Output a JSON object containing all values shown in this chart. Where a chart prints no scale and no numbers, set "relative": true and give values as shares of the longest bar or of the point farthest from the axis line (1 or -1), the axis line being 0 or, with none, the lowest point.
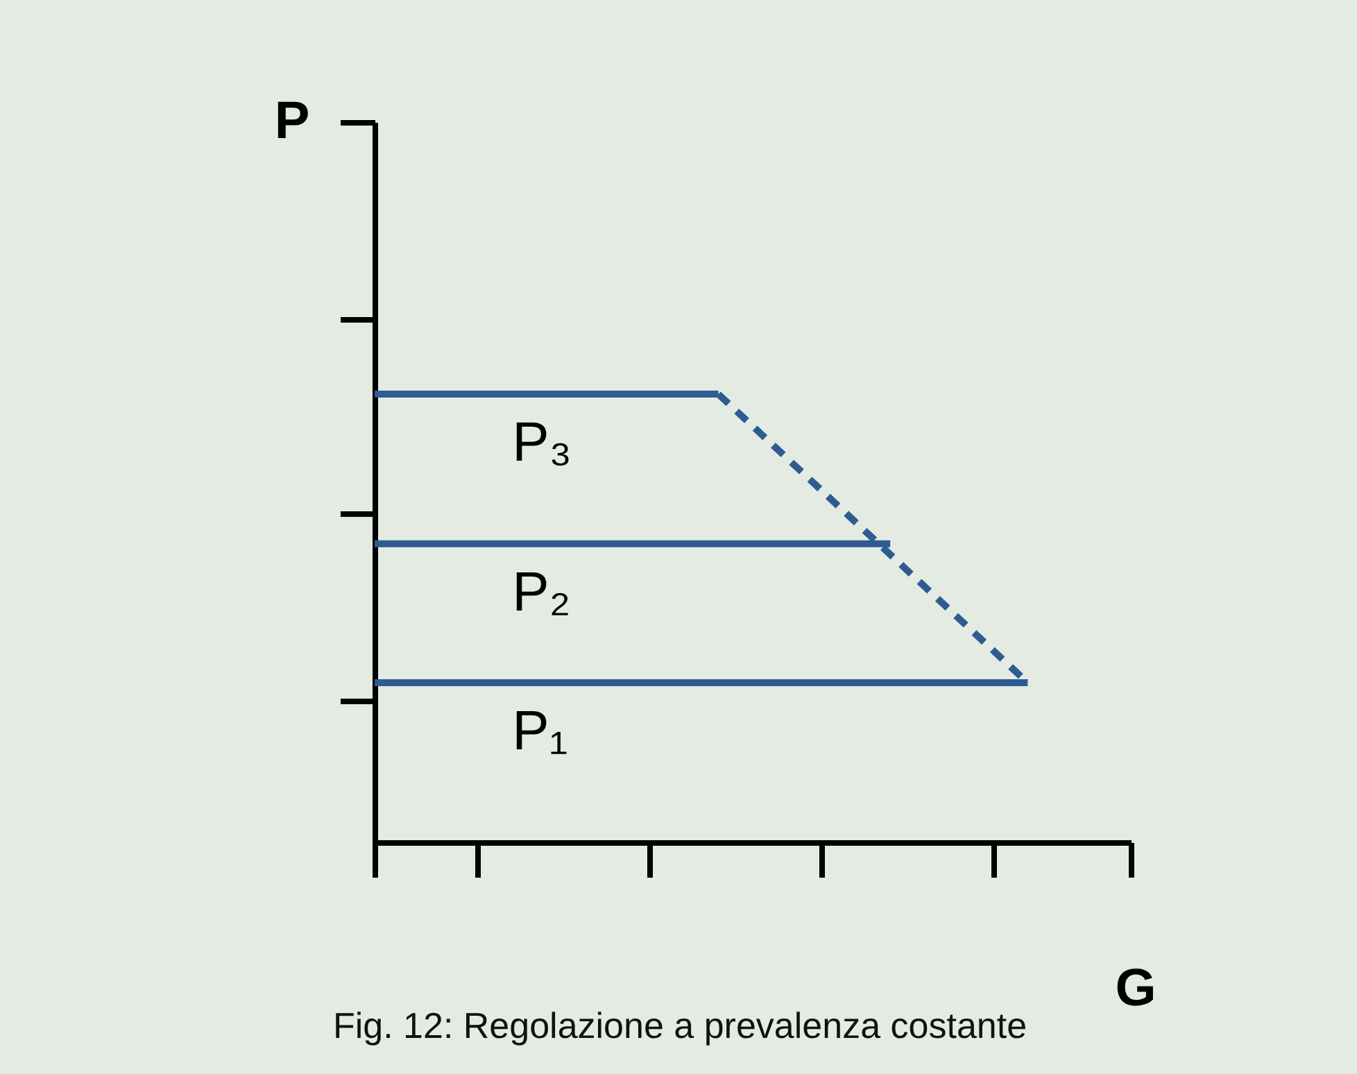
{
  "chart_data": {
    "type": "line",
    "relative": true,
    "xlabel": "G",
    "ylabel": "P",
    "annotations": [
      "Fig. 12: Regolazione a prevalenza costante"
    ],
    "categories": [
      null,
      null,
      null,
      null,
      null,
      null,
      null,
      null,
      null,
      null,
      null,
      null,
      null,
      null,
      null,
      null,
      null,
      null,
      null,
      null,
      null,
      null,
      null
    ],
    "grid": false,
    "marker": "none",
    "series": [
      {
        "name": "P₃",
        "color": "#2f5b93",
        "values": [
          1,
          null,
          null,
          null,
          null,
          null,
          null,
          null,
          null,
          null,
          1,
          null,
          null,
          null,
          null,
          null,
          null,
          null,
          null,
          null,
          null,
          null,
          null
        ],
        "line_style": "solid"
      },
      {
        "name": "P₂",
        "color": "#2f5b93",
        "values": [
          0.666,
          null,
          null,
          null,
          null,
          null,
          null,
          null,
          null,
          null,
          null,
          null,
          null,
          null,
          null,
          0.666,
          null,
          null,
          null,
          null,
          null,
          null,
          null
        ],
        "line_style": "solid"
      },
      {
        "name": "P₁",
        "color": "#2f5b93",
        "values": [
          0.356,
          null,
          null,
          null,
          null,
          null,
          null,
          null,
          null,
          null,
          null,
          null,
          null,
          null,
          null,
          null,
          null,
          null,
          null,
          0.356,
          null,
          null,
          null
        ],
        "line_style": "solid"
      },
      {
        "color": "#2f5b93",
        "values": [
          null,
          null,
          null,
          null,
          null,
          null,
          null,
          null,
          null,
          null,
          1,
          null,
          null,
          null,
          null,
          null,
          null,
          null,
          null,
          0.356,
          null,
          null,
          null
        ],
        "line_style": "dashed"
      }
    ]
  }
}
